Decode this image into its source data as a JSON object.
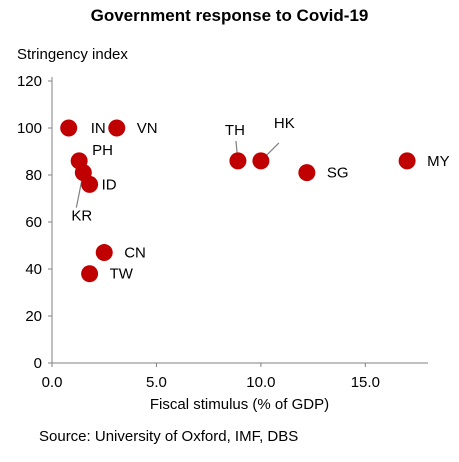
{
  "chart_data": {
    "type": "scatter",
    "title": "Government response to Covid-19",
    "ylabel": "Stringency index",
    "xlabel": "Fiscal stimulus (% of GDP)",
    "source": "Source: University of Oxford, IMF, DBS",
    "xlim": [
      0,
      18
    ],
    "ylim": [
      0,
      120
    ],
    "xticks": [
      "0.0",
      "5.0",
      "10.0",
      "15.0"
    ],
    "xtick_values": [
      0,
      5,
      10,
      15
    ],
    "yticks": [
      "0",
      "20",
      "40",
      "60",
      "80",
      "100",
      "120"
    ],
    "ytick_values": [
      0,
      20,
      40,
      60,
      80,
      100,
      120
    ],
    "grid": false,
    "marker_color": "#C00000",
    "points": [
      {
        "label": "IN",
        "x": 0.8,
        "y": 100
      },
      {
        "label": "VN",
        "x": 3.1,
        "y": 100
      },
      {
        "label": "PH",
        "x": 1.3,
        "y": 86
      },
      {
        "label": "KR",
        "x": 1.5,
        "y": 81
      },
      {
        "label": "ID",
        "x": 1.8,
        "y": 76
      },
      {
        "label": "CN",
        "x": 2.5,
        "y": 47
      },
      {
        "label": "TW",
        "x": 1.8,
        "y": 38
      },
      {
        "label": "TH",
        "x": 8.9,
        "y": 86
      },
      {
        "label": "HK",
        "x": 10.0,
        "y": 86
      },
      {
        "label": "SG",
        "x": 12.2,
        "y": 81
      },
      {
        "label": "MY",
        "x": 17.0,
        "y": 86
      }
    ]
  }
}
